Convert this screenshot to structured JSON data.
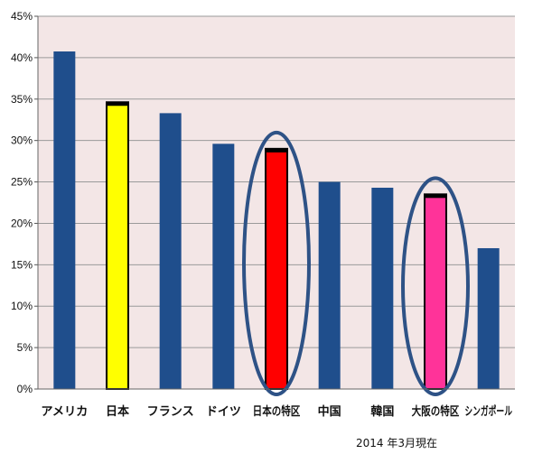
{
  "note": "2014 年3月現在",
  "chart_data": {
    "type": "bar",
    "title": "",
    "xlabel": "",
    "ylabel": "",
    "ylim": [
      0,
      45
    ],
    "yticks": [
      "0%",
      "5%",
      "10%",
      "15%",
      "20%",
      "25%",
      "30%",
      "35%",
      "40%",
      "45%"
    ],
    "grid": true,
    "categories": [
      "アメリカ",
      "日本",
      "フランス",
      "ドイツ",
      "日本の特区",
      "中国",
      "韓国",
      "大阪の特区",
      "シンガポール"
    ],
    "values": [
      40.75,
      34.62,
      33.3,
      29.6,
      29.0,
      25.0,
      24.3,
      23.5,
      17.0
    ],
    "bar_colors": [
      "#1f4e8c",
      "#ffff00",
      "#1f4e8c",
      "#1f4e8c",
      "#ff0000",
      "#1f4e8c",
      "#1f4e8c",
      "#ff3399",
      "#1f4e8c"
    ],
    "highlighted": [
      "日本の特区",
      "大阪の特区"
    ],
    "plot_background": "#f3e6e6",
    "ellipse_color": "#2e5286"
  }
}
